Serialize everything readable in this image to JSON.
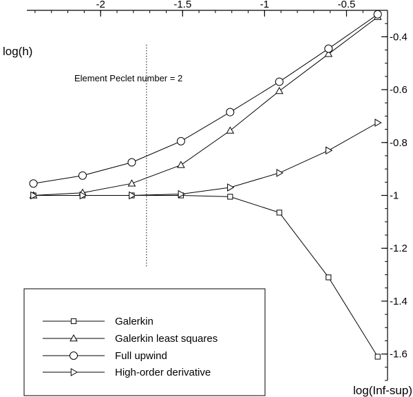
{
  "chart_data": {
    "type": "line",
    "xlabel": "log(Inf-sup)",
    "ylabel": "log(h)",
    "xlim": [
      -2.45,
      -0.25
    ],
    "ylim": [
      -1.7,
      -0.3
    ],
    "x_axis_position": "top",
    "y_axis_position": "right",
    "grid": false,
    "x_ticks": [
      -2,
      -1.5,
      -1,
      -0.5
    ],
    "x_tick_labels": [
      "-2",
      "-1.5",
      "-1",
      "-0.5"
    ],
    "y_ticks": [
      -0.4,
      -0.6,
      -0.8,
      -1,
      -1.2,
      -1.4,
      -1.6
    ],
    "y_tick_labels": [
      "-0.4",
      "-0.6",
      "-0.8",
      "-1",
      "-1.2",
      "-1.4",
      "-1.6"
    ],
    "annotation": {
      "text": "Element Peclet number = 2",
      "x_line": -1.72,
      "y_from": -0.43,
      "y_to": -1.27
    },
    "legend_position": "bottom-left",
    "x": [
      -2.41,
      -2.11,
      -1.81,
      -1.51,
      -1.21,
      -0.91,
      -0.61,
      -0.31
    ],
    "series": [
      {
        "name": "Galerkin",
        "marker": "square",
        "values": [
          -1.0,
          -1.0,
          -1.0,
          -1.0,
          -1.005,
          -1.065,
          -1.31,
          -1.61
        ]
      },
      {
        "name": "Galerkin least squares",
        "marker": "triangle-up",
        "values": [
          -1.0,
          -0.99,
          -0.955,
          -0.885,
          -0.755,
          -0.605,
          -0.465,
          -0.325
        ]
      },
      {
        "name": "Full upwind",
        "marker": "circle",
        "values": [
          -0.955,
          -0.925,
          -0.875,
          -0.795,
          -0.685,
          -0.57,
          -0.445,
          -0.315
        ]
      },
      {
        "name": "High-order derivative",
        "marker": "triangle-right",
        "values": [
          -1.0,
          -1.0,
          -1.0,
          -0.995,
          -0.97,
          -0.915,
          -0.83,
          -0.725
        ]
      }
    ]
  }
}
